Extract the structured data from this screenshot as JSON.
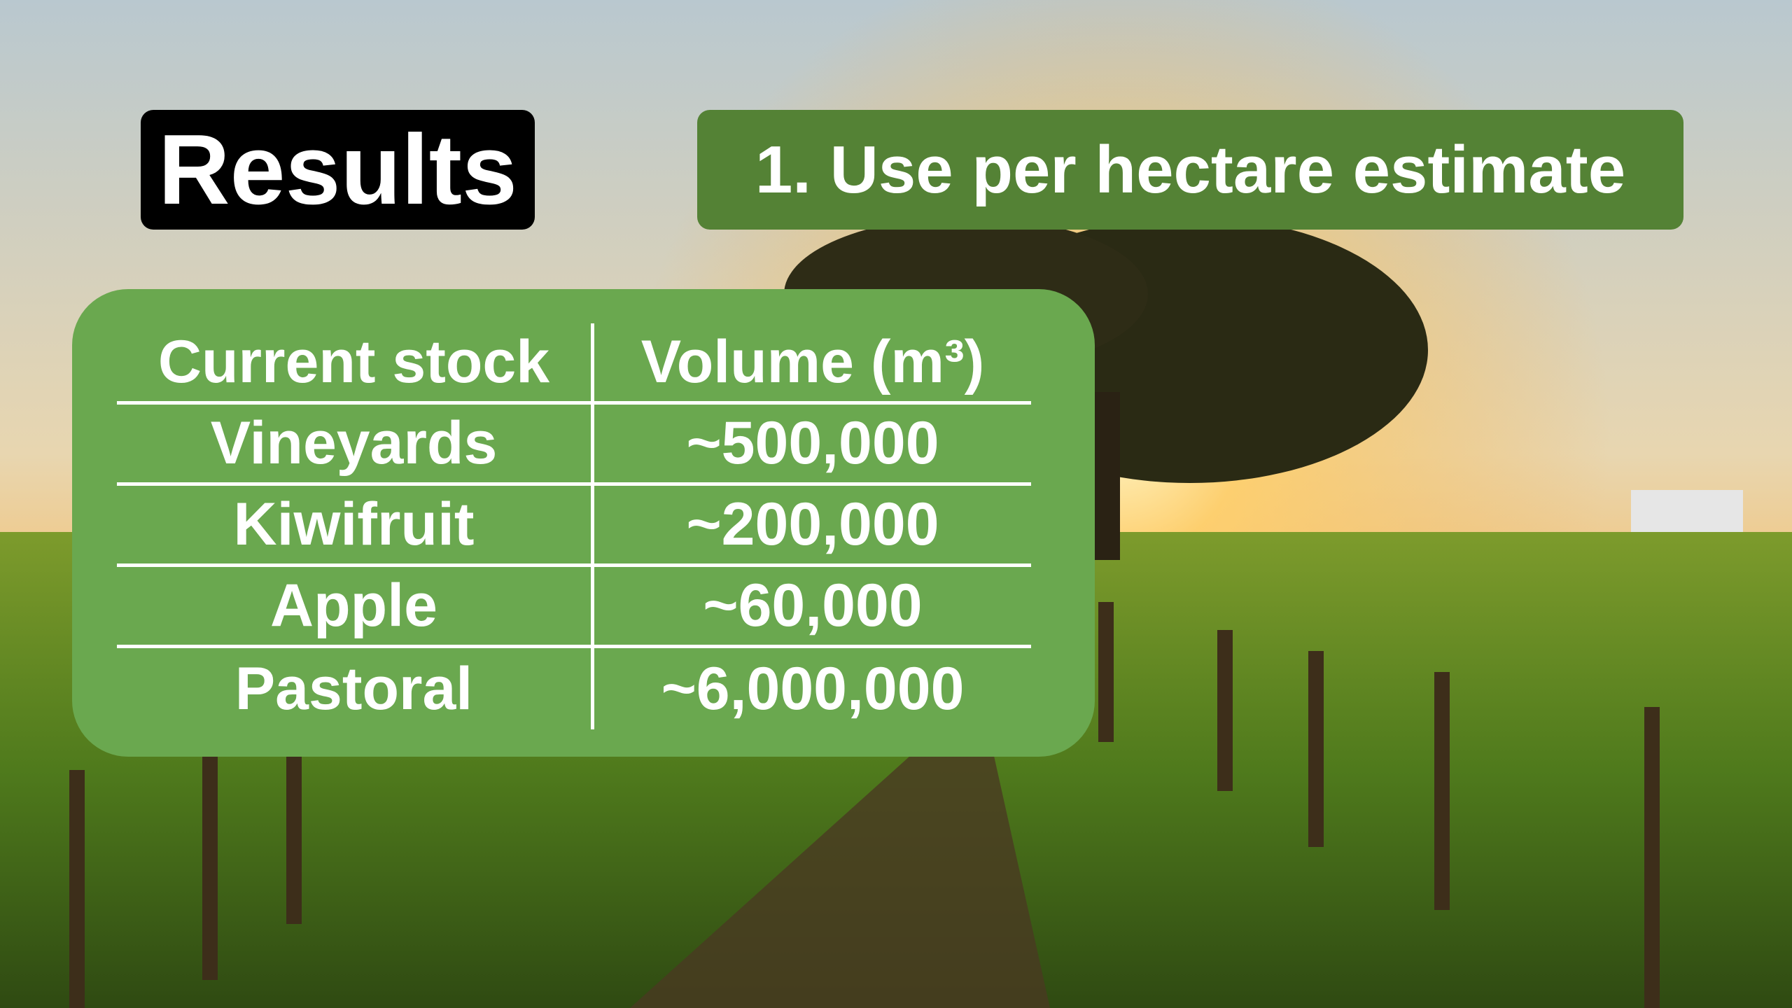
{
  "header": {
    "title": "Results",
    "subtitle": "1. Use per hectare estimate"
  },
  "table": {
    "columns": [
      "Current stock",
      "Volume (m³)"
    ],
    "rows": [
      [
        "Vineyards",
        "~500,000"
      ],
      [
        "Kiwifruit",
        "~200,000"
      ],
      [
        "Apple",
        "~60,000"
      ],
      [
        "Pastoral",
        "~6,000,000"
      ]
    ]
  }
}
